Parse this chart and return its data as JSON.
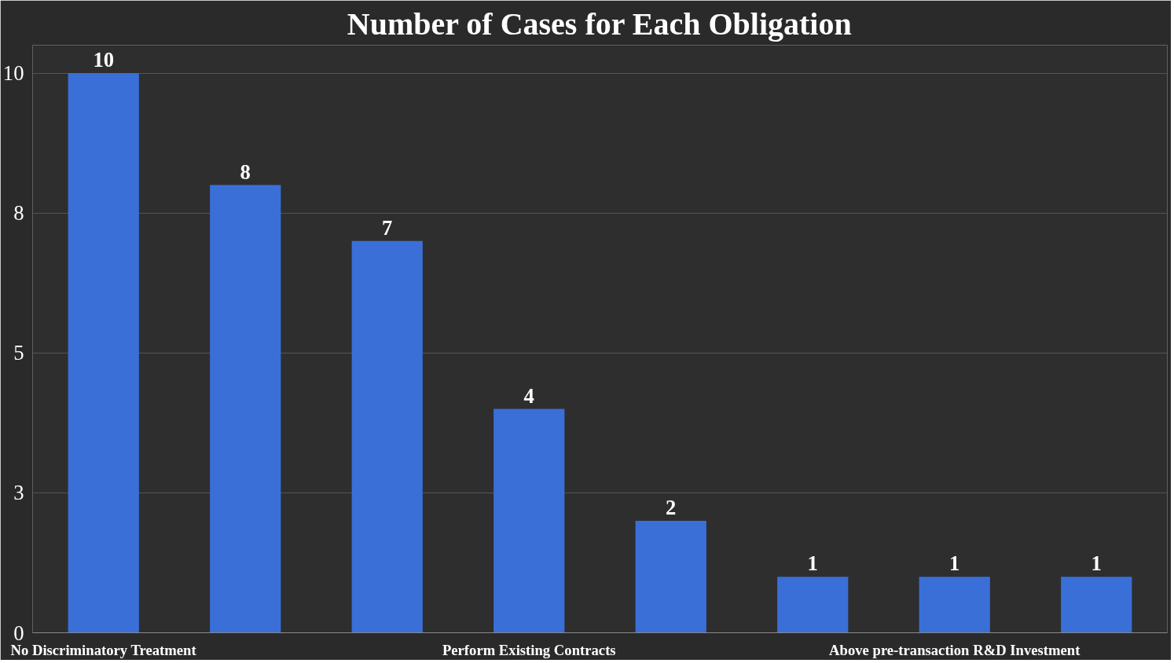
{
  "chart_data": {
    "type": "bar",
    "title": "Number of Cases for Each Obligation",
    "categories": [
      "No Discriminatory Treatment",
      null,
      null,
      "Perform Existing Contracts",
      null,
      null,
      "Above pre-transaction R&D Investment",
      null
    ],
    "values": [
      10,
      8,
      7,
      4,
      2,
      1,
      1,
      1
    ],
    "color": "#3a6fd8",
    "ylim": [
      0,
      10.5
    ],
    "yticks": [
      0,
      {
        "value": 2.5,
        "label": "3"
      },
      5,
      {
        "value": 7.5,
        "label": "8"
      },
      10
    ],
    "grid": "y",
    "data_labels": true
  }
}
